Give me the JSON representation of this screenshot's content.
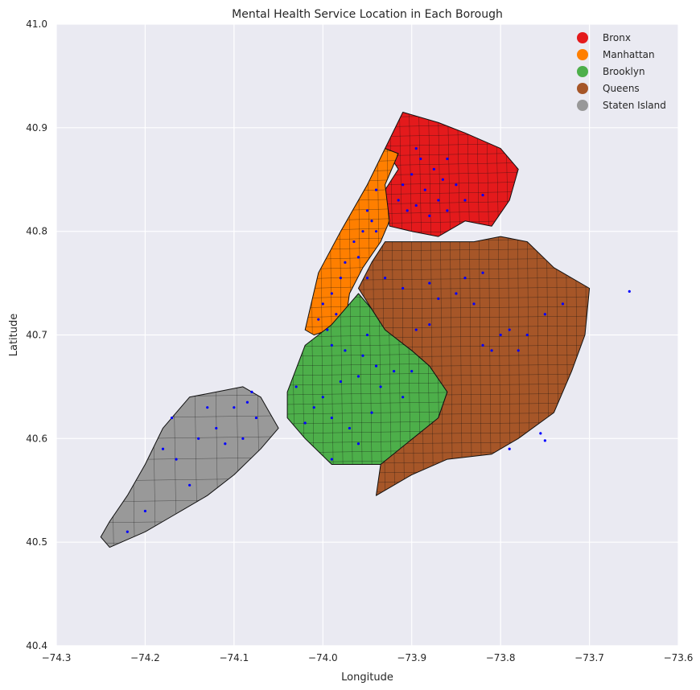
{
  "chart_data": {
    "type": "map",
    "title": "Mental Health Service Location in Each Borough",
    "xlabel": "Longitude",
    "ylabel": "Latitude",
    "xlim": [
      -74.3,
      -73.6
    ],
    "ylim": [
      40.4,
      41.0
    ],
    "xticks": [
      -74.3,
      -74.2,
      -74.1,
      -74.0,
      -73.9,
      -73.8,
      -73.7,
      -73.6
    ],
    "xtick_labels": [
      "−74.3",
      "−74.2",
      "−74.1",
      "−74.0",
      "−73.9",
      "−73.8",
      "−73.7",
      "−73.6"
    ],
    "yticks": [
      40.4,
      40.5,
      40.6,
      40.7,
      40.8,
      40.9,
      41.0
    ],
    "ytick_labels": [
      "40.4",
      "40.5",
      "40.6",
      "40.7",
      "40.8",
      "40.9",
      "41.0"
    ],
    "grid": true,
    "background": "#eaeaf2",
    "legend_position": "top-right",
    "boroughs": [
      {
        "name": "Bronx",
        "color": "#e41a1c",
        "polygon": [
          [
            -73.93,
            40.88
          ],
          [
            -73.91,
            40.915
          ],
          [
            -73.87,
            40.905
          ],
          [
            -73.84,
            40.895
          ],
          [
            -73.8,
            40.88
          ],
          [
            -73.78,
            40.86
          ],
          [
            -73.79,
            40.83
          ],
          [
            -73.81,
            40.805
          ],
          [
            -73.84,
            40.81
          ],
          [
            -73.87,
            40.795
          ],
          [
            -73.9,
            40.8
          ],
          [
            -73.925,
            40.805
          ],
          [
            -73.93,
            40.84
          ],
          [
            -73.915,
            40.86
          ]
        ]
      },
      {
        "name": "Manhattan",
        "color": "#ff7f00",
        "polygon": [
          [
            -73.915,
            40.875
          ],
          [
            -73.93,
            40.88
          ],
          [
            -73.95,
            40.845
          ],
          [
            -73.98,
            40.8
          ],
          [
            -74.005,
            40.76
          ],
          [
            -74.02,
            40.705
          ],
          [
            -74.01,
            40.7
          ],
          [
            -73.975,
            40.71
          ],
          [
            -73.97,
            40.74
          ],
          [
            -73.955,
            40.765
          ],
          [
            -73.935,
            40.79
          ],
          [
            -73.925,
            40.81
          ],
          [
            -73.93,
            40.845
          ]
        ]
      },
      {
        "name": "Brooklyn",
        "color": "#4daf4a",
        "polygon": [
          [
            -73.96,
            40.74
          ],
          [
            -73.99,
            40.71
          ],
          [
            -74.02,
            40.69
          ],
          [
            -74.04,
            40.645
          ],
          [
            -74.04,
            40.62
          ],
          [
            -74.02,
            40.6
          ],
          [
            -73.99,
            40.575
          ],
          [
            -73.96,
            40.575
          ],
          [
            -73.93,
            40.575
          ],
          [
            -73.9,
            40.59
          ],
          [
            -73.87,
            40.62
          ],
          [
            -73.86,
            40.645
          ],
          [
            -73.88,
            40.67
          ],
          [
            -73.9,
            40.685
          ],
          [
            -73.93,
            40.705
          ],
          [
            -73.945,
            40.725
          ]
        ]
      },
      {
        "name": "Queens",
        "color": "#a65628",
        "polygon": [
          [
            -73.96,
            40.745
          ],
          [
            -73.945,
            40.77
          ],
          [
            -73.93,
            40.79
          ],
          [
            -73.91,
            40.79
          ],
          [
            -73.87,
            40.79
          ],
          [
            -73.83,
            40.79
          ],
          [
            -73.8,
            40.795
          ],
          [
            -73.77,
            40.79
          ],
          [
            -73.74,
            40.765
          ],
          [
            -73.7,
            40.745
          ],
          [
            -73.705,
            40.7
          ],
          [
            -73.72,
            40.665
          ],
          [
            -73.74,
            40.625
          ],
          [
            -73.78,
            40.6
          ],
          [
            -73.81,
            40.585
          ],
          [
            -73.86,
            40.58
          ],
          [
            -73.9,
            40.565
          ],
          [
            -73.94,
            40.545
          ],
          [
            -73.935,
            40.575
          ],
          [
            -73.87,
            40.62
          ],
          [
            -73.86,
            40.645
          ],
          [
            -73.88,
            40.67
          ],
          [
            -73.9,
            40.685
          ],
          [
            -73.93,
            40.705
          ],
          [
            -73.945,
            40.725
          ]
        ]
      },
      {
        "name": "Staten Island",
        "color": "#999999",
        "polygon": [
          [
            -74.25,
            40.505
          ],
          [
            -74.24,
            40.52
          ],
          [
            -74.22,
            40.545
          ],
          [
            -74.2,
            40.575
          ],
          [
            -74.18,
            40.61
          ],
          [
            -74.15,
            40.64
          ],
          [
            -74.12,
            40.645
          ],
          [
            -74.09,
            40.65
          ],
          [
            -74.07,
            40.64
          ],
          [
            -74.05,
            40.61
          ],
          [
            -74.07,
            40.59
          ],
          [
            -74.1,
            40.565
          ],
          [
            -74.13,
            40.545
          ],
          [
            -74.17,
            40.525
          ],
          [
            -74.2,
            40.51
          ],
          [
            -74.24,
            40.495
          ]
        ]
      }
    ],
    "service_points": {
      "color": "#0000ff",
      "points": [
        [
          -73.89,
          40.87
        ],
        [
          -73.875,
          40.86
        ],
        [
          -73.9,
          40.855
        ],
        [
          -73.885,
          40.84
        ],
        [
          -73.865,
          40.85
        ],
        [
          -73.91,
          40.845
        ],
        [
          -73.87,
          40.83
        ],
        [
          -73.895,
          40.825
        ],
        [
          -73.85,
          40.845
        ],
        [
          -73.84,
          40.83
        ],
        [
          -73.915,
          40.83
        ],
        [
          -73.905,
          40.82
        ],
        [
          -73.88,
          40.815
        ],
        [
          -73.86,
          40.82
        ],
        [
          -73.82,
          40.835
        ],
        [
          -73.895,
          40.88
        ],
        [
          -73.86,
          40.87
        ],
        [
          -73.94,
          40.84
        ],
        [
          -73.95,
          40.82
        ],
        [
          -73.955,
          40.8
        ],
        [
          -73.965,
          40.79
        ],
        [
          -73.975,
          40.77
        ],
        [
          -73.98,
          40.755
        ],
        [
          -73.99,
          40.74
        ],
        [
          -73.985,
          40.72
        ],
        [
          -74.005,
          40.715
        ],
        [
          -73.995,
          40.705
        ],
        [
          -73.945,
          40.81
        ],
        [
          -73.94,
          40.8
        ],
        [
          -73.96,
          40.775
        ],
        [
          -74.0,
          40.73
        ],
        [
          -73.99,
          40.69
        ],
        [
          -73.975,
          40.685
        ],
        [
          -73.955,
          40.68
        ],
        [
          -73.94,
          40.67
        ],
        [
          -73.92,
          40.665
        ],
        [
          -73.935,
          40.65
        ],
        [
          -73.96,
          40.66
        ],
        [
          -73.98,
          40.655
        ],
        [
          -74.0,
          40.64
        ],
        [
          -74.01,
          40.63
        ],
        [
          -73.99,
          40.62
        ],
        [
          -73.97,
          40.61
        ],
        [
          -73.96,
          40.595
        ],
        [
          -73.99,
          40.58
        ],
        [
          -73.945,
          40.625
        ],
        [
          -73.91,
          40.64
        ],
        [
          -74.02,
          40.615
        ],
        [
          -74.03,
          40.65
        ],
        [
          -73.9,
          40.665
        ],
        [
          -73.95,
          40.7
        ],
        [
          -73.95,
          40.755
        ],
        [
          -73.93,
          40.755
        ],
        [
          -73.91,
          40.745
        ],
        [
          -73.88,
          40.75
        ],
        [
          -73.87,
          40.735
        ],
        [
          -73.85,
          40.74
        ],
        [
          -73.83,
          40.73
        ],
        [
          -73.8,
          40.7
        ],
        [
          -73.79,
          40.705
        ],
        [
          -73.81,
          40.685
        ],
        [
          -73.78,
          40.685
        ],
        [
          -73.77,
          40.7
        ],
        [
          -73.75,
          40.72
        ],
        [
          -73.73,
          40.73
        ],
        [
          -73.82,
          40.76
        ],
        [
          -73.84,
          40.755
        ],
        [
          -73.895,
          40.705
        ],
        [
          -73.88,
          40.71
        ],
        [
          -73.755,
          40.605
        ],
        [
          -73.75,
          40.598
        ],
        [
          -73.79,
          40.59
        ],
        [
          -73.82,
          40.69
        ],
        [
          -73.655,
          40.742
        ],
        [
          -74.08,
          40.645
        ],
        [
          -74.085,
          40.635
        ],
        [
          -74.075,
          40.62
        ],
        [
          -74.1,
          40.63
        ],
        [
          -74.13,
          40.63
        ],
        [
          -74.14,
          40.6
        ],
        [
          -74.12,
          40.61
        ],
        [
          -74.165,
          40.58
        ],
        [
          -74.18,
          40.59
        ],
        [
          -74.09,
          40.6
        ],
        [
          -74.2,
          40.53
        ],
        [
          -74.22,
          40.51
        ],
        [
          -74.15,
          40.555
        ],
        [
          -74.11,
          40.595
        ],
        [
          -74.17,
          40.62
        ]
      ]
    }
  }
}
